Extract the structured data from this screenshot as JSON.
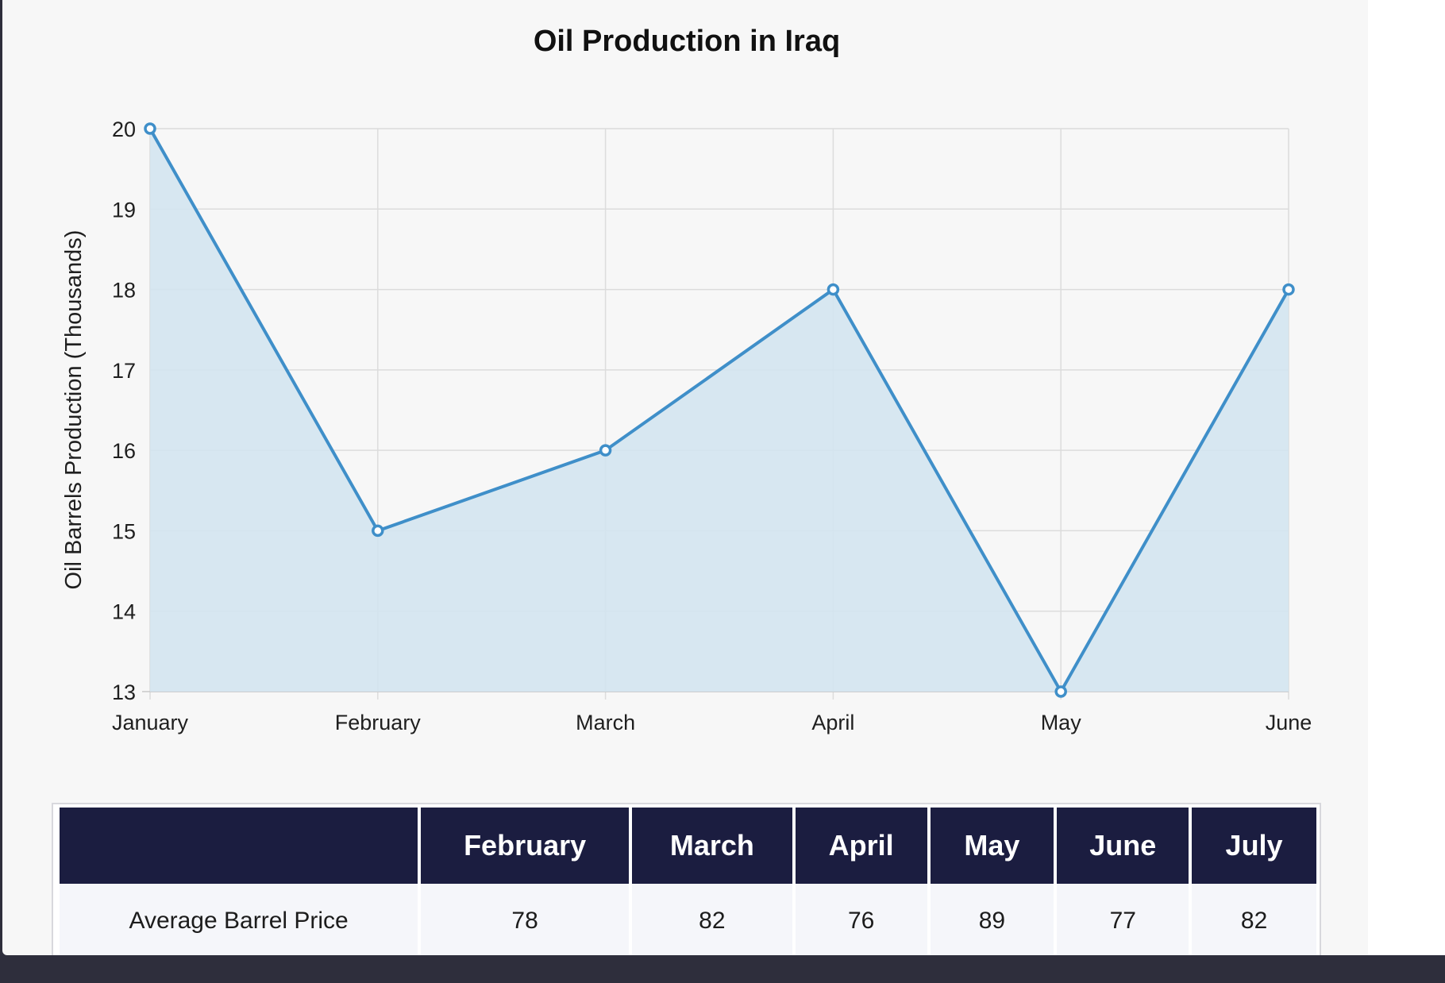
{
  "chart_data": {
    "type": "area",
    "title": "Oil Production in Iraq",
    "ylabel": "Oil Barrels Production (Thousands)",
    "xlabel": "",
    "categories": [
      "January",
      "February",
      "March",
      "April",
      "May",
      "June"
    ],
    "series": [
      {
        "values": [
          20,
          15,
          16,
          18,
          13,
          18
        ]
      }
    ],
    "ylim": [
      13,
      20
    ],
    "yticks": [
      13,
      14,
      15,
      16,
      17,
      18,
      19,
      20
    ],
    "grid": true,
    "colors": {
      "line": "#3f8fc9",
      "fill": "#d3e4f0",
      "grid": "#dcdcdc"
    }
  },
  "table": {
    "headers": [
      "",
      "February",
      "March",
      "April",
      "May",
      "June",
      "July"
    ],
    "rows": [
      {
        "label": "Average Barrel Price",
        "values": [
          "78",
          "82",
          "76",
          "89",
          "77",
          "82"
        ]
      }
    ]
  }
}
